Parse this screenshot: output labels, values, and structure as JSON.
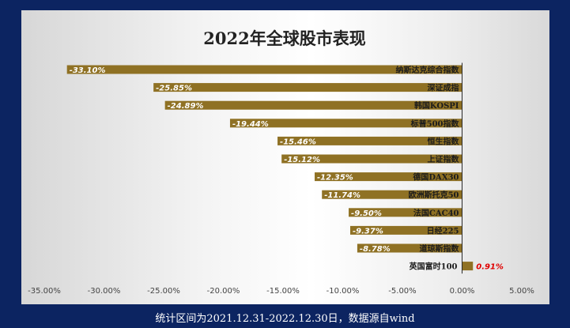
{
  "chart_data": {
    "type": "bar",
    "orientation": "horizontal",
    "title": "2022年全球股市表现",
    "categories": [
      "纳斯达克综合指数",
      "深证成指",
      "韩国KOSPI",
      "标普500指数",
      "恒生指数",
      "上证指数",
      "德国DAX30",
      "欧洲斯托克50",
      "法国CAC40",
      "日经225",
      "道琼斯指数",
      "英国富时100"
    ],
    "values": [
      -33.1,
      -25.85,
      -24.89,
      -19.44,
      -15.46,
      -15.12,
      -12.35,
      -11.74,
      -9.5,
      -9.37,
      -8.78,
      0.91
    ],
    "value_labels": [
      "-33.10%",
      "-25.85%",
      "-24.89%",
      "-19.44%",
      "-15.46%",
      "-15.12%",
      "-12.35%",
      "-11.74%",
      "-9.50%",
      "-9.37%",
      "-8.78%",
      "0.91%"
    ],
    "xlim": [
      -35,
      5
    ],
    "xticks": [
      -35,
      -30,
      -25,
      -20,
      -15,
      -10,
      -5,
      0,
      5
    ],
    "xtick_labels": [
      "-35.00%",
      "-30.00%",
      "-25.00%",
      "-20.00%",
      "-15.00%",
      "-10.00%",
      "-5.00%",
      "0.00%",
      "5.00%"
    ],
    "bar_color": "#8f7124",
    "negative_label_color": "#ffffff",
    "positive_label_color": "#e00000",
    "grid": false,
    "legend": "none"
  },
  "footnote": "统计区间为2021.12.31-2022.12.30日，数据源自wind",
  "colors": {
    "frame": "#0c2461",
    "bar": "#8f7124"
  }
}
